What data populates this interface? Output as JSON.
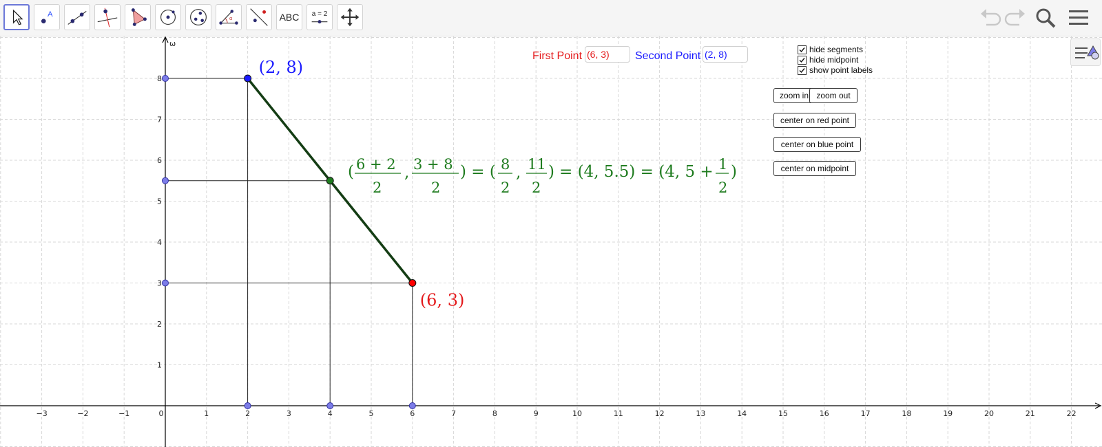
{
  "toolbar": {
    "tools": [
      "move-tool",
      "point-tool",
      "line-tool",
      "perpendicular-line-tool",
      "polygon-tool",
      "circle-tool",
      "conic-tool",
      "angle-tool",
      "reflect-tool",
      "text-tool",
      "slider-tool",
      "move-graphics-view-tool"
    ],
    "text_tool_label": "ABC",
    "slider_tool_label": "a = 2"
  },
  "inputs": {
    "first_point_label": "First Point",
    "first_point_value": "(6, 3)",
    "second_point_label": "Second Point",
    "second_point_value": "(2, 8)"
  },
  "checkboxes": [
    {
      "label": "hide segments",
      "checked": true
    },
    {
      "label": "hide midpoint",
      "checked": true
    },
    {
      "label": "show point labels",
      "checked": true
    }
  ],
  "buttons": {
    "zoom_in": "zoom in",
    "zoom_out": "zoom out",
    "center_red": "center on red point",
    "center_blue": "center on blue point",
    "center_mid": "center on midpoint"
  },
  "labels": {
    "blue_point": "(2, 8)",
    "red_point": "(6, 3)",
    "y_axis": "ω"
  },
  "formula": {
    "x_num": "6 + 2",
    "y_num": "3 + 8",
    "den": "2",
    "r_x": "8",
    "r_y": "11",
    "decimal": "= (4, 5.5) = (4, 5 +",
    "half_num": "1"
  },
  "chart_data": {
    "type": "scatter",
    "x_ticks": [
      -3,
      -2,
      -1,
      0,
      1,
      2,
      3,
      4,
      5,
      6,
      7,
      8,
      9,
      10,
      11,
      12,
      13,
      14,
      15,
      16,
      17,
      18,
      19,
      20,
      21,
      22
    ],
    "y_ticks": [
      1,
      2,
      3,
      4,
      5,
      6,
      7,
      8
    ],
    "points": [
      {
        "x": 2,
        "y": 8,
        "color": "#1a1aff",
        "label": "(2, 8)"
      },
      {
        "x": 6,
        "y": 3,
        "color": "#ff0000",
        "label": "(6, 3)"
      },
      {
        "x": 4,
        "y": 5.5,
        "color": "#1e7b1e"
      }
    ],
    "projection_points": [
      {
        "x": 0,
        "y": 8
      },
      {
        "x": 0,
        "y": 5.5
      },
      {
        "x": 0,
        "y": 3
      },
      {
        "x": 2,
        "y": 0
      },
      {
        "x": 4,
        "y": 0
      },
      {
        "x": 6,
        "y": 0
      }
    ],
    "segment": {
      "from": [
        2,
        8
      ],
      "to": [
        6,
        3
      ],
      "color": "#143d14"
    },
    "colors": {
      "axis": "#000000",
      "grid": "#d7d7d7",
      "projection": "#7c7ce8",
      "helper_lines": "#222222"
    }
  }
}
